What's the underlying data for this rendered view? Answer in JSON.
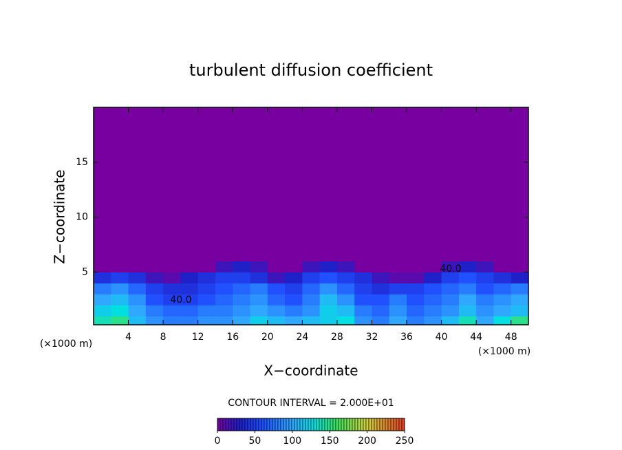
{
  "chart_data": {
    "type": "contour",
    "title": "turbulent diffusion coefficient",
    "xlabel": "X−coordinate",
    "ylabel": "Z−coordinate",
    "x_unit": "(×1000 m)",
    "y_unit": "(×1000 m)",
    "annotation": "CONTOUR INTERVAL = 2.000E+01",
    "contour_labels": [
      "40.0",
      "40.0"
    ],
    "xlim": [
      0,
      50
    ],
    "ylim": [
      0.2,
      20
    ],
    "xticks": [
      4,
      8,
      12,
      16,
      20,
      24,
      28,
      32,
      36,
      40,
      44,
      48
    ],
    "yticks": [
      5,
      10,
      15
    ],
    "xedges": [
      0,
      2,
      4,
      6,
      8,
      10,
      12,
      14,
      16,
      18,
      20,
      22,
      24,
      26,
      28,
      30,
      32,
      34,
      36,
      38,
      40,
      42,
      44,
      46,
      48,
      50
    ],
    "yedges": [
      0.2,
      1,
      2,
      3,
      4,
      5,
      6,
      20
    ],
    "z": [
      [
        140,
        150,
        110,
        90,
        80,
        80,
        90,
        90,
        100,
        120,
        110,
        100,
        110,
        120,
        130,
        90,
        80,
        100,
        80,
        90,
        110,
        140,
        100,
        130,
        150
      ],
      [
        120,
        130,
        100,
        80,
        70,
        70,
        80,
        80,
        90,
        100,
        90,
        80,
        90,
        120,
        110,
        80,
        70,
        90,
        70,
        80,
        90,
        110,
        90,
        100,
        110
      ],
      [
        100,
        110,
        90,
        60,
        50,
        50,
        60,
        70,
        80,
        90,
        70,
        60,
        80,
        110,
        90,
        60,
        60,
        80,
        60,
        70,
        80,
        100,
        80,
        90,
        100
      ],
      [
        80,
        90,
        70,
        50,
        40,
        40,
        50,
        60,
        70,
        80,
        60,
        50,
        70,
        90,
        70,
        50,
        40,
        50,
        50,
        60,
        70,
        80,
        60,
        70,
        80
      ],
      [
        40,
        50,
        40,
        20,
        10,
        30,
        40,
        50,
        50,
        40,
        20,
        30,
        50,
        60,
        50,
        40,
        20,
        10,
        10,
        30,
        50,
        60,
        50,
        40,
        30
      ],
      [
        0,
        0,
        0,
        0,
        0,
        0,
        0,
        20,
        30,
        20,
        0,
        0,
        20,
        30,
        20,
        0,
        0,
        0,
        0,
        0,
        20,
        30,
        20,
        0,
        0
      ],
      [
        0,
        0,
        0,
        0,
        0,
        0,
        0,
        0,
        0,
        0,
        0,
        0,
        0,
        0,
        0,
        0,
        0,
        0,
        0,
        0,
        0,
        0,
        0,
        0,
        0
      ]
    ],
    "clim": [
      0,
      250
    ],
    "cticks": [
      0,
      50,
      100,
      150,
      200,
      250
    ],
    "colormap": [
      [
        0,
        "#7800a0"
      ],
      [
        30,
        "#2020c8"
      ],
      [
        60,
        "#2050ff"
      ],
      [
        100,
        "#30a8ff"
      ],
      [
        130,
        "#00e0e0"
      ],
      [
        160,
        "#40e060"
      ],
      [
        200,
        "#d0d040"
      ],
      [
        250,
        "#e04020"
      ]
    ]
  }
}
